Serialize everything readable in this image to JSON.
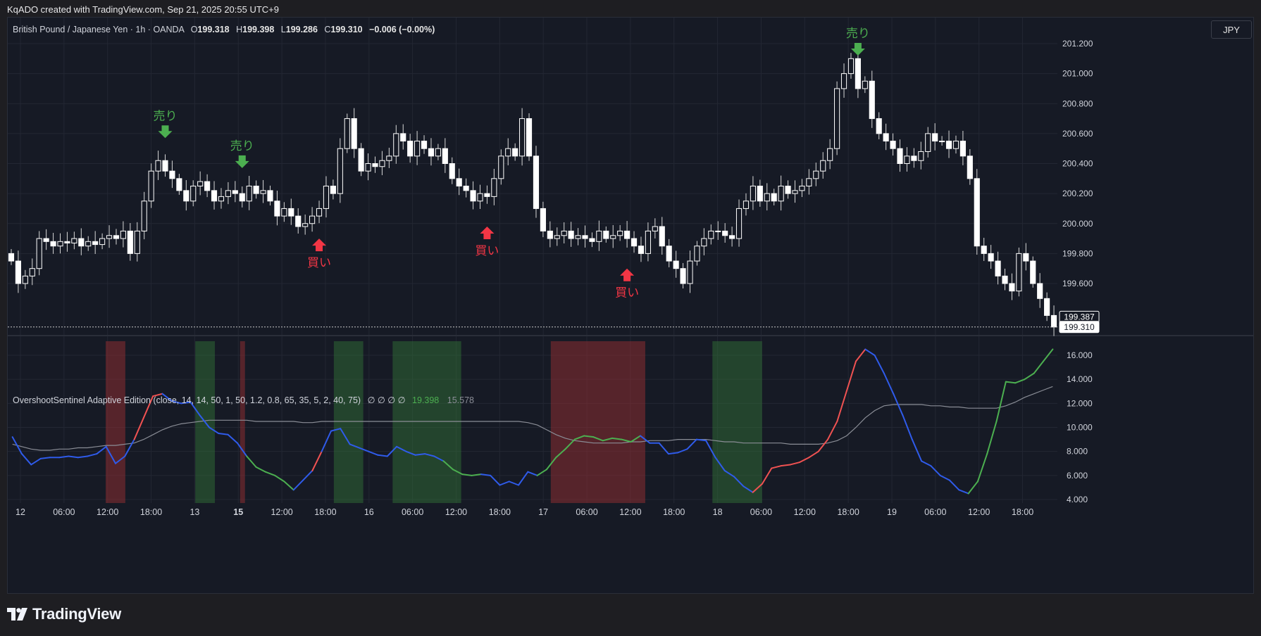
{
  "header": {
    "attribution": "KqADO created with TradingView.com, Sep 21, 2025 20:55 UTC+9"
  },
  "legend": {
    "symbol": "British Pound / Japanese Yen · 1h · OANDA",
    "o_label": "O",
    "o_value": "199.318",
    "h_label": "H",
    "h_value": "199.398",
    "l_label": "L",
    "l_value": "199.286",
    "c_label": "C",
    "c_value": "199.310",
    "change": "−0.006 (−0.00%)"
  },
  "currency_button": "JPY",
  "indicator": {
    "name": "OvershootSentinel Adaptive Edition (close, 14, 14, 50, 1, 50, 1.2, 0.8, 65, 35, 5, 2, 40, 75)",
    "empty_values": "∅ ∅ ∅ ∅",
    "value1": "19.398",
    "value2": "15.578"
  },
  "footer": {
    "brand": "TradingView"
  },
  "colors": {
    "background": "#161a25",
    "up_candle": "#ffffff",
    "down_candle": "#ffffff",
    "sell_signal": "#4caf50",
    "buy_signal": "#f23645",
    "osc_neutral": "#2f5bea",
    "osc_overbought": "#f05252",
    "osc_oversold": "#4caf50",
    "osc_baseline": "#8a8d96",
    "zone_red": "rgba(150,45,50,0.5)",
    "zone_green": "rgba(50,120,55,0.45)"
  },
  "chart_data": [
    {
      "type": "candlestick",
      "title": "British Pound / Japanese Yen · 1h · OANDA",
      "ylim": [
        199.3,
        201.3
      ],
      "y_ticks": [
        "201.200",
        "201.000",
        "200.800",
        "200.600",
        "200.400",
        "200.200",
        "200.000",
        "199.800",
        "199.600"
      ],
      "x_ticks": [
        "12",
        "06:00",
        "12:00",
        "18:00",
        "13",
        "15",
        "12:00",
        "18:00",
        "16",
        "06:00",
        "12:00",
        "18:00",
        "17",
        "06:00",
        "12:00",
        "18:00",
        "18",
        "06:00",
        "12:00",
        "18:00",
        "19",
        "06:00",
        "12:00",
        "18:00"
      ],
      "bold_x_ticks": [
        "15"
      ],
      "price_labels": [
        "199.387",
        "199.310"
      ],
      "close_path": [
        199.75,
        199.6,
        199.65,
        199.7,
        199.9,
        199.88,
        199.85,
        199.88,
        199.87,
        199.9,
        199.85,
        199.88,
        199.86,
        199.9,
        199.92,
        199.9,
        199.95,
        199.8,
        199.95,
        200.15,
        200.35,
        200.42,
        200.35,
        200.3,
        200.22,
        200.15,
        200.25,
        200.28,
        200.22,
        200.15,
        200.18,
        200.22,
        200.2,
        200.15,
        200.25,
        200.2,
        200.22,
        200.15,
        200.05,
        200.1,
        200.05,
        199.98,
        200.0,
        200.05,
        200.1,
        200.25,
        200.2,
        200.5,
        200.7,
        200.5,
        200.35,
        200.4,
        200.38,
        200.42,
        200.45,
        200.6,
        200.55,
        200.45,
        200.55,
        200.5,
        200.45,
        200.5,
        200.4,
        200.3,
        200.25,
        200.22,
        200.15,
        200.2,
        200.18,
        200.3,
        200.45,
        200.5,
        200.45,
        200.7,
        200.45,
        200.1,
        199.95,
        199.9,
        199.92,
        199.95,
        199.9,
        199.92,
        199.9,
        199.88,
        199.95,
        199.9,
        199.92,
        199.95,
        199.9,
        199.85,
        199.8,
        199.95,
        199.98,
        199.85,
        199.75,
        199.7,
        199.6,
        199.75,
        199.85,
        199.9,
        199.95,
        199.95,
        199.92,
        199.9,
        200.1,
        200.15,
        200.25,
        200.15,
        200.2,
        200.15,
        200.25,
        200.2,
        200.22,
        200.25,
        200.3,
        200.35,
        200.42,
        200.5,
        200.9,
        201.0,
        201.1,
        200.9,
        200.95,
        200.7,
        200.6,
        200.55,
        200.5,
        200.4,
        200.45,
        200.42,
        200.48,
        200.6,
        200.55,
        200.55,
        200.5,
        200.55,
        200.45,
        200.3,
        199.85,
        199.8,
        199.75,
        199.65,
        199.6,
        199.55,
        199.8,
        199.75,
        199.6,
        199.5,
        199.387,
        199.31
      ],
      "signals": [
        {
          "type": "sell",
          "label": "売り"
        },
        {
          "type": "buy",
          "label": "買い"
        },
        {
          "type": "sell",
          "label": "売り"
        },
        {
          "type": "buy",
          "label": "買い"
        },
        {
          "type": "buy",
          "label": "買い"
        },
        {
          "type": "sell",
          "label": "売り"
        }
      ]
    },
    {
      "type": "line",
      "title": "OvershootSentinel Adaptive Edition",
      "ylim": [
        4,
        17
      ],
      "y_ticks": [
        "16.000",
        "14.000",
        "12.000",
        "10.000",
        "8.000",
        "6.000",
        "4.000"
      ],
      "series": [
        {
          "name": "oscillator",
          "values": [
            9.2,
            7.8,
            6.9,
            7.4,
            7.5,
            7.5,
            7.6,
            7.5,
            7.6,
            7.8,
            8.4,
            7.0,
            7.6,
            9.0,
            10.8,
            12.6,
            12.8,
            12.2,
            12.0,
            12.1,
            11.0,
            10.0,
            9.5,
            9.4,
            8.7,
            7.6,
            6.7,
            6.3,
            6.0,
            5.5,
            4.8,
            5.6,
            6.4,
            8.0,
            9.7,
            9.9,
            8.6,
            8.3,
            8.0,
            7.7,
            7.6,
            8.4,
            8.0,
            7.7,
            7.8,
            7.6,
            7.2,
            6.5,
            6.1,
            6.0,
            6.1,
            6.0,
            5.2,
            5.5,
            5.2,
            6.3,
            6.0,
            6.5,
            7.5,
            8.2,
            9.0,
            9.3,
            9.2,
            8.9,
            9.1,
            9.0,
            8.8,
            9.3,
            8.7,
            8.7,
            7.8,
            7.9,
            8.2,
            9.0,
            8.9,
            7.5,
            6.4,
            5.9,
            5.1,
            4.6,
            5.3,
            6.6,
            6.8,
            6.9,
            7.1,
            7.5,
            8.0,
            9.0,
            10.5,
            13.0,
            15.5,
            16.5,
            16.0,
            14.5,
            12.8,
            11.0,
            9.0,
            7.2,
            6.8,
            6.0,
            5.6,
            4.8,
            4.5,
            5.5,
            7.8,
            10.5,
            13.8,
            13.7,
            14.0,
            14.5,
            15.5,
            16.5
          ],
          "states": [
            "n",
            "n",
            "n",
            "n",
            "n",
            "n",
            "n",
            "n",
            "n",
            "n",
            "n",
            "n",
            "n",
            "n",
            "r",
            "r",
            "r",
            "n",
            "n",
            "n",
            "n",
            "n",
            "n",
            "n",
            "n",
            "n",
            "g",
            "g",
            "g",
            "g",
            "g",
            "n",
            "n",
            "r",
            "n",
            "n",
            "n",
            "n",
            "n",
            "n",
            "n",
            "n",
            "n",
            "n",
            "n",
            "n",
            "n",
            "g",
            "g",
            "g",
            "g",
            "n",
            "n",
            "n",
            "n",
            "n",
            "n",
            "g",
            "g",
            "g",
            "g",
            "g",
            "g",
            "g",
            "g",
            "g",
            "g",
            "g",
            "n",
            "n",
            "n",
            "n",
            "n",
            "n",
            "n",
            "n",
            "n",
            "n",
            "n",
            "n",
            "r",
            "r",
            "r",
            "r",
            "r",
            "r",
            "r",
            "r",
            "r",
            "r",
            "r",
            "r",
            "n",
            "n",
            "n",
            "n",
            "n",
            "n",
            "n",
            "n",
            "n",
            "n",
            "n",
            "g",
            "g",
            "g",
            "g",
            "g",
            "g",
            "g",
            "g",
            "g"
          ]
        },
        {
          "name": "baseline",
          "values": [
            8.6,
            8.4,
            8.2,
            8.1,
            8.1,
            8.2,
            8.2,
            8.3,
            8.3,
            8.4,
            8.5,
            8.5,
            8.6,
            8.7,
            9.0,
            9.4,
            9.8,
            10.1,
            10.3,
            10.4,
            10.5,
            10.6,
            10.6,
            10.6,
            10.6,
            10.6,
            10.5,
            10.5,
            10.5,
            10.5,
            10.5,
            10.4,
            10.4,
            10.5,
            10.5,
            10.5,
            10.5,
            10.5,
            10.5,
            10.5,
            10.5,
            10.5,
            10.5,
            10.5,
            10.5,
            10.5,
            10.5,
            10.5,
            10.5,
            10.5,
            10.5,
            10.5,
            10.5,
            10.5,
            10.5,
            10.4,
            10.2,
            9.8,
            9.4,
            9.1,
            8.9,
            8.8,
            8.7,
            8.7,
            8.7,
            8.7,
            8.8,
            8.8,
            8.9,
            8.9,
            8.9,
            9.0,
            9.0,
            9.0,
            9.0,
            8.9,
            8.8,
            8.8,
            8.7,
            8.7,
            8.7,
            8.7,
            8.7,
            8.6,
            8.6,
            8.6,
            8.6,
            8.7,
            8.9,
            9.3,
            10.0,
            10.8,
            11.4,
            11.8,
            11.9,
            11.9,
            11.9,
            11.9,
            11.8,
            11.8,
            11.7,
            11.7,
            11.6,
            11.6,
            11.6,
            11.6,
            11.8,
            12.1,
            12.5,
            12.8,
            13.1,
            13.4
          ]
        }
      ],
      "zones": [
        {
          "color": "red",
          "from": 14,
          "to": 16.8
        },
        {
          "color": "green",
          "from": 26.8,
          "to": 29.6
        },
        {
          "color": "red",
          "from": 33.2,
          "to": 33.9
        },
        {
          "color": "green",
          "from": 46.6,
          "to": 50.8
        },
        {
          "color": "green",
          "from": 55.0,
          "to": 64.8
        },
        {
          "color": "red",
          "from": 77.6,
          "to": 91.1
        },
        {
          "color": "green",
          "from": 100.7,
          "to": 107.8
        }
      ]
    }
  ]
}
